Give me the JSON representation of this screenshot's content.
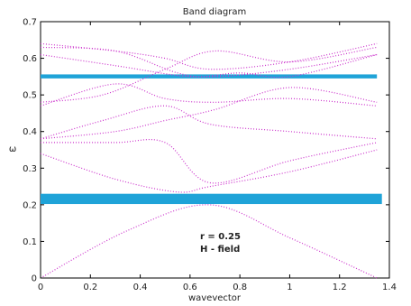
{
  "chart_data": {
    "type": "scatter",
    "title": "Band diagram",
    "xlabel": "wavevector",
    "ylabel": "ω",
    "xlim": [
      0,
      1.4
    ],
    "ylim": [
      0,
      0.7
    ],
    "xticks": [
      "0",
      "0.2",
      "0.4",
      "0.6",
      "0.8",
      "1",
      "1.2",
      "1.4"
    ],
    "yticks": [
      "0",
      "0.1",
      "0.2",
      "0.3",
      "0.4",
      "0.5",
      "0.6",
      "0.7"
    ],
    "grid": false,
    "line_color": "#cc33cc",
    "gap_color": "#1fa3d8",
    "band_gaps": [
      {
        "x": [
          0,
          1.37
        ],
        "y": [
          0.202,
          0.23
        ]
      },
      {
        "x": [
          0,
          1.35
        ],
        "y": [
          0.545,
          0.556
        ]
      }
    ],
    "annotations": [
      "r = 0.25",
      "H - field"
    ],
    "series": [
      {
        "x": [
          0,
          0.35,
          0.68,
          1.0,
          1.35
        ],
        "y": [
          0,
          0.13,
          0.2,
          0.11,
          0
        ]
      },
      {
        "x": [
          0,
          0.3,
          0.55,
          0.68,
          1.0,
          1.35
        ],
        "y": [
          0.34,
          0.27,
          0.235,
          0.25,
          0.29,
          0.35
        ]
      },
      {
        "x": [
          0,
          0.3,
          0.5,
          0.68,
          1.0,
          1.35
        ],
        "y": [
          0.37,
          0.37,
          0.37,
          0.26,
          0.32,
          0.37
        ]
      },
      {
        "x": [
          0,
          0.25,
          0.5,
          0.68,
          1.0,
          1.35
        ],
        "y": [
          0.38,
          0.43,
          0.47,
          0.42,
          0.4,
          0.38
        ]
      },
      {
        "x": [
          0,
          0.3,
          0.5,
          0.7,
          1.0,
          1.35
        ],
        "y": [
          0.38,
          0.4,
          0.43,
          0.46,
          0.52,
          0.48
        ]
      },
      {
        "x": [
          0,
          0.3,
          0.5,
          0.7,
          1.0,
          1.35
        ],
        "y": [
          0.47,
          0.53,
          0.49,
          0.48,
          0.49,
          0.47
        ]
      },
      {
        "x": [
          0,
          0.25,
          0.5,
          0.7,
          1.0,
          1.35
        ],
        "y": [
          0.48,
          0.5,
          0.57,
          0.62,
          0.59,
          0.63
        ]
      },
      {
        "x": [
          0,
          0.3,
          0.5,
          0.68,
          1.0,
          1.35
        ],
        "y": [
          0.64,
          0.62,
          0.6,
          0.57,
          0.59,
          0.64
        ]
      },
      {
        "x": [
          0,
          0.3,
          0.55,
          0.7,
          1.0,
          1.35
        ],
        "y": [
          0.63,
          0.62,
          0.56,
          0.55,
          0.57,
          0.61
        ]
      },
      {
        "x": [
          0,
          0.3,
          0.6,
          0.8,
          1.0,
          1.35
        ],
        "y": [
          0.61,
          0.58,
          0.55,
          0.56,
          0.55,
          0.61
        ]
      }
    ]
  }
}
